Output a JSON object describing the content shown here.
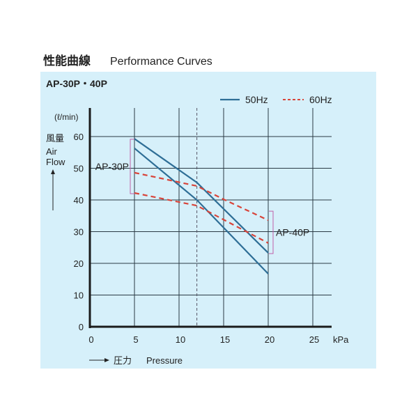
{
  "chart_data": {
    "type": "line",
    "title_jp": "性能曲線",
    "title": "Performance Curves",
    "subtitle": "AP-30P・40P",
    "y_unit": "(ℓ/min)",
    "ylabel_jp": "風量",
    "ylabel": "Air Flow",
    "xlabel_jp": "圧力",
    "xlabel": "Pressure",
    "x_unit": "kPa",
    "xlim": [
      0,
      27
    ],
    "ylim": [
      0,
      60
    ],
    "xticks": [
      0,
      5,
      10,
      15,
      20,
      25
    ],
    "yticks": [
      0,
      10,
      20,
      30,
      40,
      50,
      60
    ],
    "grid": true,
    "reference_line_x": 12,
    "legend": {
      "position": "top-right",
      "entries": [
        {
          "label": "50Hz",
          "style": "solid",
          "color": "#2e6e96"
        },
        {
          "label": "60Hz",
          "style": "dashed",
          "color": "#d8443a"
        }
      ]
    },
    "series": [
      {
        "name": "AP-40P 50Hz",
        "style": "solid",
        "x": [
          5,
          12,
          20
        ],
        "y": [
          59.3,
          45.5,
          23.3
        ]
      },
      {
        "name": "AP-30P 50Hz",
        "style": "solid",
        "x": [
          5,
          12,
          20
        ],
        "y": [
          56.3,
          40,
          16.7
        ]
      },
      {
        "name": "AP-40P 60Hz",
        "style": "dashed",
        "x": [
          5,
          12,
          15,
          20
        ],
        "y": [
          48.6,
          44.4,
          40.2,
          33.6
        ]
      },
      {
        "name": "AP-30P 60Hz",
        "style": "dashed",
        "x": [
          5,
          12,
          20
        ],
        "y": [
          42.2,
          38.2,
          26.4
        ]
      }
    ],
    "annotations": [
      {
        "label": "AP-30P",
        "x": 5,
        "y_range": [
          42.2,
          56.3
        ],
        "side": "left"
      },
      {
        "label": "AP-40P",
        "x": 20,
        "y_range": [
          23.3,
          33.6
        ],
        "side": "right"
      }
    ]
  }
}
